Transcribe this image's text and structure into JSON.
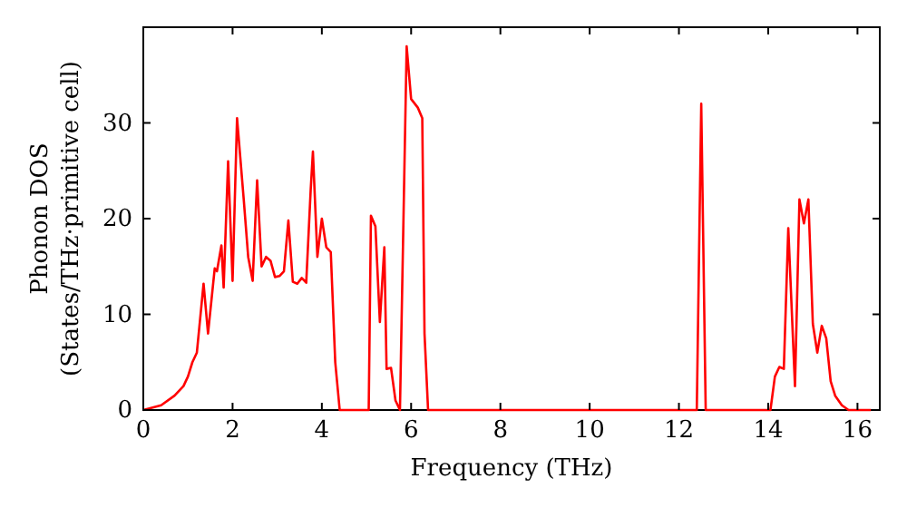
{
  "chart_data": {
    "type": "line",
    "xlabel": "Frequency (THz)",
    "ylabel": "Phonon DOS\n(States/THz·primitive cell)",
    "x": [
      0,
      0.4,
      0.7,
      0.9,
      1.0,
      1.1,
      1.2,
      1.35,
      1.45,
      1.6,
      1.65,
      1.75,
      1.8,
      1.9,
      2.0,
      2.1,
      2.25,
      2.35,
      2.45,
      2.55,
      2.65,
      2.75,
      2.85,
      2.95,
      3.05,
      3.15,
      3.25,
      3.35,
      3.45,
      3.55,
      3.65,
      3.75,
      3.8,
      3.9,
      4.0,
      4.1,
      4.2,
      4.3,
      4.4,
      5.05,
      5.1,
      5.2,
      5.3,
      5.4,
      5.45,
      5.55,
      5.65,
      5.75,
      5.9,
      6.0,
      6.15,
      6.25,
      6.3,
      6.38,
      12.4,
      12.5,
      12.6,
      14.05,
      14.15,
      14.25,
      14.35,
      14.45,
      14.6,
      14.7,
      14.8,
      14.9,
      15.0,
      15.1,
      15.2,
      15.3,
      15.4,
      15.5,
      15.65,
      15.8,
      16.3
    ],
    "series": [
      {
        "color": "#ff0000",
        "values": [
          0,
          0.5,
          1.5,
          2.5,
          3.5,
          5,
          6,
          13.2,
          8,
          14.8,
          14.5,
          17.2,
          12.8,
          26,
          13.5,
          30.5,
          22,
          16,
          13.5,
          24,
          15,
          16,
          15.6,
          13.9,
          14,
          14.5,
          19.8,
          13.4,
          13.2,
          13.8,
          13.3,
          23,
          27,
          16,
          20,
          17,
          16.5,
          5,
          0,
          0,
          20.3,
          19.2,
          9.2,
          17,
          4.3,
          4.4,
          1,
          0,
          38,
          32.5,
          31.6,
          30.5,
          8,
          0,
          0,
          32,
          0,
          0,
          3.5,
          4.5,
          4.3,
          19,
          2.5,
          22,
          19.5,
          22,
          9,
          6,
          8.8,
          7.5,
          3,
          1.5,
          0.5,
          0,
          0
        ]
      }
    ],
    "xlim": [
      0,
      16.5
    ],
    "ylim": [
      0,
      40
    ],
    "xticks": [
      0,
      2,
      4,
      6,
      8,
      10,
      12,
      14,
      16
    ],
    "yticks": [
      0,
      10,
      20,
      30
    ],
    "grid": false,
    "marker": "none",
    "line_style": "solid"
  }
}
